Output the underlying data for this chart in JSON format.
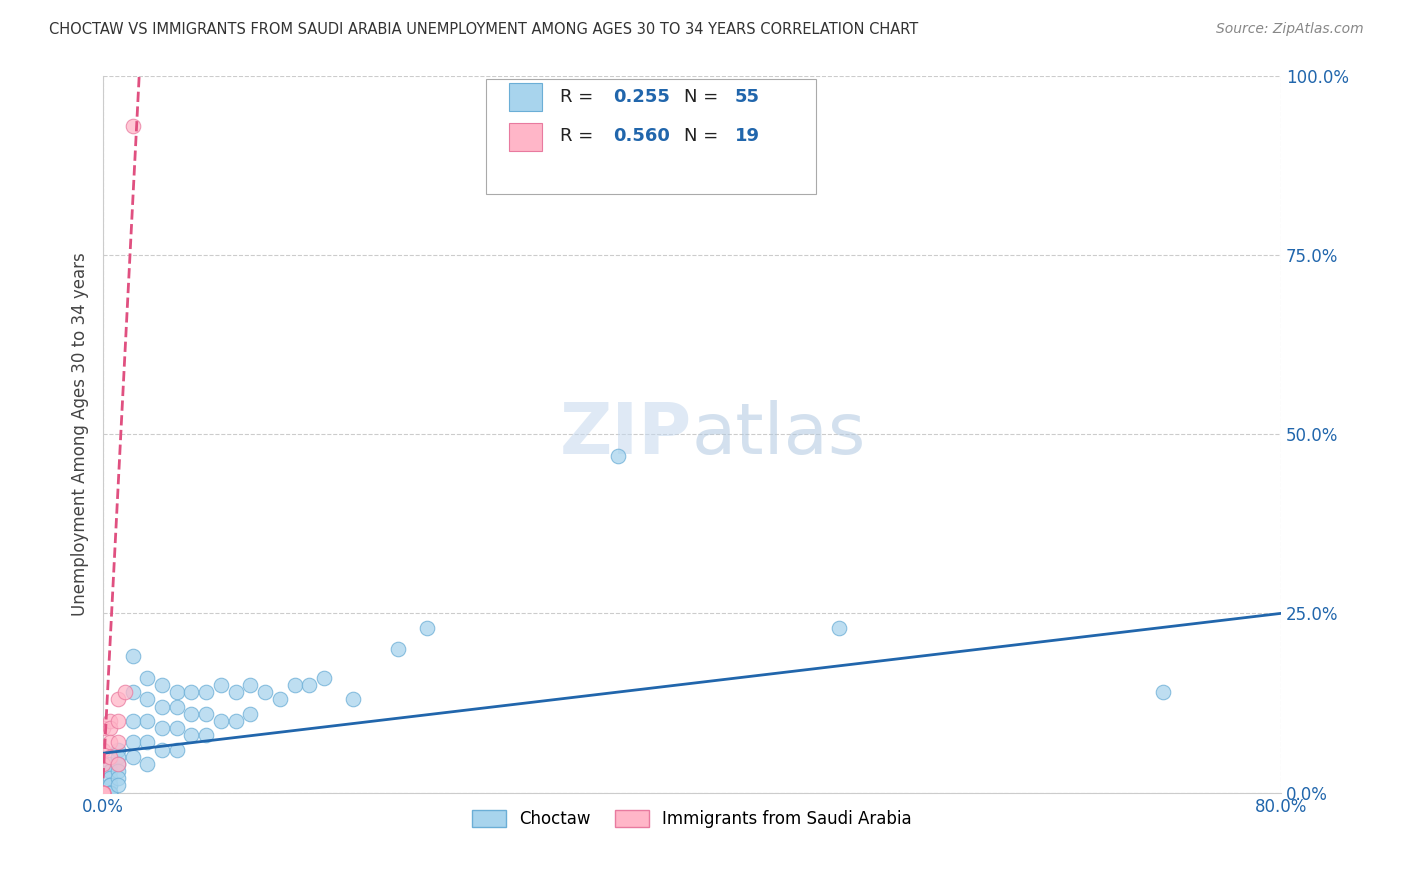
{
  "title": "CHOCTAW VS IMMIGRANTS FROM SAUDI ARABIA UNEMPLOYMENT AMONG AGES 30 TO 34 YEARS CORRELATION CHART",
  "source": "Source: ZipAtlas.com",
  "ylabel": "Unemployment Among Ages 30 to 34 years",
  "xlim": [
    0.0,
    0.8
  ],
  "ylim": [
    0.0,
    1.0
  ],
  "yticks": [
    0.0,
    0.25,
    0.5,
    0.75,
    1.0
  ],
  "ytick_labels": [
    "0.0%",
    "25.0%",
    "50.0%",
    "75.0%",
    "100.0%"
  ],
  "choctaw_color": "#a8d4ed",
  "choctaw_edge": "#6baed6",
  "saudi_color": "#ffb6c8",
  "saudi_edge": "#e87a9f",
  "trend_blue": "#2166ac",
  "trend_pink": "#e05080",
  "R_choctaw": 0.255,
  "N_choctaw": 55,
  "R_saudi": 0.56,
  "N_saudi": 19,
  "legend_label_choctaw": "Choctaw",
  "legend_label_saudi": "Immigrants from Saudi Arabia",
  "watermark_zip": "ZIP",
  "watermark_atlas": "atlas",
  "choctaw_x": [
    0.005,
    0.005,
    0.005,
    0.005,
    0.005,
    0.005,
    0.005,
    0.005,
    0.01,
    0.01,
    0.01,
    0.01,
    0.01,
    0.01,
    0.02,
    0.02,
    0.02,
    0.02,
    0.02,
    0.03,
    0.03,
    0.03,
    0.03,
    0.03,
    0.04,
    0.04,
    0.04,
    0.04,
    0.05,
    0.05,
    0.05,
    0.05,
    0.06,
    0.06,
    0.06,
    0.07,
    0.07,
    0.07,
    0.08,
    0.08,
    0.09,
    0.09,
    0.1,
    0.1,
    0.11,
    0.12,
    0.13,
    0.14,
    0.15,
    0.17,
    0.2,
    0.22,
    0.35,
    0.5,
    0.72
  ],
  "choctaw_y": [
    0.04,
    0.03,
    0.02,
    0.01,
    0.01,
    0.0,
    0.0,
    0.0,
    0.06,
    0.05,
    0.04,
    0.03,
    0.02,
    0.01,
    0.19,
    0.14,
    0.1,
    0.07,
    0.05,
    0.16,
    0.13,
    0.1,
    0.07,
    0.04,
    0.15,
    0.12,
    0.09,
    0.06,
    0.14,
    0.12,
    0.09,
    0.06,
    0.14,
    0.11,
    0.08,
    0.14,
    0.11,
    0.08,
    0.15,
    0.1,
    0.14,
    0.1,
    0.15,
    0.11,
    0.14,
    0.13,
    0.15,
    0.15,
    0.16,
    0.13,
    0.2,
    0.23,
    0.47,
    0.23,
    0.14
  ],
  "saudi_x": [
    0.0,
    0.0,
    0.0,
    0.0,
    0.0,
    0.0,
    0.0,
    0.0,
    0.0,
    0.005,
    0.005,
    0.005,
    0.005,
    0.01,
    0.01,
    0.01,
    0.01,
    0.015,
    0.02
  ],
  "saudi_y": [
    0.0,
    0.0,
    0.0,
    0.0,
    0.0,
    0.0,
    0.04,
    0.06,
    0.09,
    0.1,
    0.09,
    0.07,
    0.05,
    0.13,
    0.1,
    0.07,
    0.04,
    0.14,
    0.93
  ],
  "trend_choctaw_x0": 0.0,
  "trend_choctaw_y0": 0.055,
  "trend_choctaw_x1": 0.8,
  "trend_choctaw_y1": 0.25,
  "trend_saudi_x0": 0.0,
  "trend_saudi_y0": 0.02,
  "trend_saudi_x1": 0.025,
  "trend_saudi_y1": 1.02
}
